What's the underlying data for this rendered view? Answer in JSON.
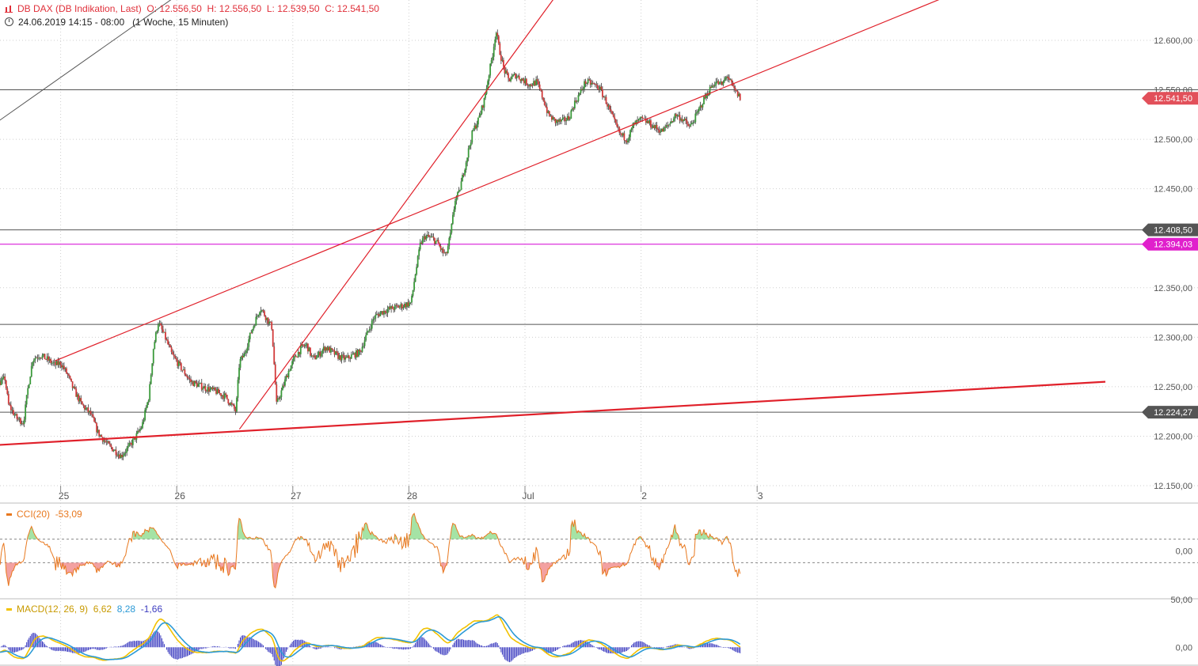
{
  "header": {
    "title": "DB DAX (DB Indikation, Last)",
    "ohlc": "O: 12.556,50  H: 12.556,50  L: 12.539,50  C: 12.541,50",
    "date_range": "24.06.2019 14:15 - 08:00",
    "timeframe": "(1 Woche, 15 Minuten)"
  },
  "chart_data": {
    "type": "candlestick",
    "x": {
      "ticks": [
        {
          "label": "25",
          "day": 1
        },
        {
          "label": "26",
          "day": 2
        },
        {
          "label": "27",
          "day": 3
        },
        {
          "label": "28",
          "day": 4
        },
        {
          "label": "Jul",
          "day": 5
        },
        {
          "label": "2",
          "day": 6
        },
        {
          "label": "3",
          "day": 7
        }
      ],
      "range_days": [
        0.0,
        10.0
      ]
    },
    "y": {
      "ticks": [
        {
          "label": "12.150,00",
          "v": 12150
        },
        {
          "label": "12.200,00",
          "v": 12200
        },
        {
          "label": "12.250,00",
          "v": 12250
        },
        {
          "label": "12.300,00",
          "v": 12300
        },
        {
          "label": "12.350,00",
          "v": 12350
        },
        {
          "label": "12.450,00",
          "v": 12450
        },
        {
          "label": "12.500,00",
          "v": 12500
        },
        {
          "label": "12.550,00",
          "v": 12550
        },
        {
          "label": "12.600,00",
          "v": 12600
        }
      ],
      "range": [
        12140,
        12650
      ]
    },
    "price_path": [
      [
        0.0,
        12288
      ],
      [
        0.1,
        12285
      ],
      [
        0.2,
        12272
      ],
      [
        0.3,
        12262
      ],
      [
        0.4,
        12258
      ],
      [
        0.45,
        12252
      ],
      [
        0.52,
        12258
      ],
      [
        0.55,
        12232
      ],
      [
        0.62,
        12218
      ],
      [
        0.68,
        12214
      ],
      [
        0.72,
        12250
      ],
      [
        0.76,
        12278
      ],
      [
        0.82,
        12282
      ],
      [
        0.88,
        12278
      ],
      [
        0.95,
        12272
      ],
      [
        1.0,
        12274
      ],
      [
        1.06,
        12262
      ],
      [
        1.1,
        12250
      ],
      [
        1.18,
        12232
      ],
      [
        1.26,
        12222
      ],
      [
        1.32,
        12204
      ],
      [
        1.4,
        12192
      ],
      [
        1.46,
        12186
      ],
      [
        1.52,
        12180
      ],
      [
        1.58,
        12188
      ],
      [
        1.64,
        12198
      ],
      [
        1.7,
        12210
      ],
      [
        1.76,
        12240
      ],
      [
        1.8,
        12290
      ],
      [
        1.84,
        12315
      ],
      [
        1.9,
        12300
      ],
      [
        1.96,
        12282
      ],
      [
        2.02,
        12272
      ],
      [
        2.08,
        12262
      ],
      [
        2.12,
        12255
      ],
      [
        2.18,
        12252
      ],
      [
        2.26,
        12248
      ],
      [
        2.34,
        12245
      ],
      [
        2.42,
        12240
      ],
      [
        2.48,
        12230
      ],
      [
        2.51,
        12225
      ],
      [
        2.54,
        12275
      ],
      [
        2.58,
        12282
      ],
      [
        2.64,
        12305
      ],
      [
        2.72,
        12330
      ],
      [
        2.78,
        12318
      ],
      [
        2.82,
        12310
      ],
      [
        2.86,
        12232
      ],
      [
        2.91,
        12248
      ],
      [
        2.96,
        12265
      ],
      [
        3.02,
        12280
      ],
      [
        3.08,
        12290
      ],
      [
        3.12,
        12292
      ],
      [
        3.17,
        12278
      ],
      [
        3.22,
        12282
      ],
      [
        3.28,
        12290
      ],
      [
        3.34,
        12285
      ],
      [
        3.4,
        12280
      ],
      [
        3.46,
        12278
      ],
      [
        3.52,
        12282
      ],
      [
        3.58,
        12285
      ],
      [
        3.62,
        12298
      ],
      [
        3.7,
        12320
      ],
      [
        3.76,
        12325
      ],
      [
        3.82,
        12328
      ],
      [
        3.88,
        12330
      ],
      [
        3.95,
        12332
      ],
      [
        4.02,
        12335
      ],
      [
        4.05,
        12360
      ],
      [
        4.1,
        12395
      ],
      [
        4.14,
        12402
      ],
      [
        4.2,
        12400
      ],
      [
        4.25,
        12395
      ],
      [
        4.28,
        12388
      ],
      [
        4.32,
        12382
      ],
      [
        4.36,
        12405
      ],
      [
        4.4,
        12440
      ],
      [
        4.43,
        12445
      ],
      [
        4.55,
        12508
      ],
      [
        4.6,
        12520
      ],
      [
        4.65,
        12540
      ],
      [
        4.68,
        12560
      ],
      [
        4.72,
        12585
      ],
      [
        4.75,
        12610
      ],
      [
        4.78,
        12590
      ],
      [
        4.82,
        12570
      ],
      [
        4.86,
        12560
      ],
      [
        4.92,
        12565
      ],
      [
        4.98,
        12560
      ],
      [
        5.04,
        12555
      ],
      [
        5.1,
        12558
      ],
      [
        5.16,
        12540
      ],
      [
        5.2,
        12525
      ],
      [
        5.26,
        12518
      ],
      [
        5.32,
        12518
      ],
      [
        5.38,
        12522
      ],
      [
        5.42,
        12535
      ],
      [
        5.48,
        12548
      ],
      [
        5.52,
        12558
      ],
      [
        5.58,
        12556
      ],
      [
        5.64,
        12552
      ],
      [
        5.7,
        12538
      ],
      [
        5.76,
        12520
      ],
      [
        5.82,
        12505
      ],
      [
        5.88,
        12500
      ],
      [
        5.94,
        12515
      ],
      [
        6.0,
        12520
      ],
      [
        6.06,
        12517
      ],
      [
        6.12,
        12512
      ],
      [
        6.18,
        12508
      ],
      [
        6.24,
        12515
      ],
      [
        6.3,
        12525
      ],
      [
        6.36,
        12520
      ],
      [
        6.42,
        12512
      ],
      [
        6.48,
        12525
      ],
      [
        6.54,
        12540
      ],
      [
        6.6,
        12552
      ],
      [
        6.64,
        12558
      ],
      [
        6.7,
        12555
      ],
      [
        6.74,
        12565
      ],
      [
        6.8,
        12550
      ],
      [
        6.86,
        12541
      ]
    ],
    "horizontal_lines": [
      {
        "value": 12550.0,
        "color": "#555555",
        "label": "",
        "bg": ""
      },
      {
        "value": 12408.5,
        "color": "#555555",
        "label": "12.408,50",
        "bg": "#555555"
      },
      {
        "value": 12394.03,
        "color": "#d400d4",
        "label": "12.394,03",
        "bg": "#e020cc"
      },
      {
        "value": 12313.0,
        "color": "#555555",
        "label": "",
        "bg": ""
      },
      {
        "value": 12224.27,
        "color": "#555555",
        "label": "12.224,27",
        "bg": "#555555"
      }
    ],
    "last_price": {
      "value": 12541.5,
      "label": "12.541,50",
      "bg": "#e2505a"
    },
    "trendlines": [
      {
        "from": [
          0.0,
          12188
        ],
        "to": [
          10.0,
          12255
        ],
        "color": "#e0202a",
        "width": 2.2
      },
      {
        "from": [
          2.54,
          12207
        ],
        "to": [
          5.36,
          12660
        ],
        "color": "#e0202a",
        "width": 1.2
      },
      {
        "from": [
          0.95,
          12276
        ],
        "to": [
          8.96,
          12660
        ],
        "color": "#e0202a",
        "width": 1.2
      },
      {
        "from": [
          0.0,
          12480
        ],
        "to": [
          2.18,
          12660
        ],
        "color": "#555555",
        "width": 1.0
      }
    ],
    "cci": {
      "label": "CCI(20)",
      "value": "-53,09",
      "ticks": [
        {
          "label": "0,00",
          "v": 0
        }
      ],
      "upper": 100,
      "lower": -100,
      "range": [
        -400,
        400
      ]
    },
    "macd": {
      "label": "MACD(12, 26, 9)",
      "values": [
        "6,62",
        "8,28",
        "-1,66"
      ],
      "ticks": [
        {
          "label": "50,00",
          "v": 50
        },
        {
          "label": "0,00",
          "v": 0
        }
      ],
      "range": [
        -18,
        50
      ]
    }
  },
  "colors": {
    "bull": "#3a9a3a",
    "bear": "#d23a3a",
    "wick": "#3a3a3a",
    "grid": "#cfcfcf",
    "cci_line": "#e8781e",
    "cci_pos_fill": "#8edc8e",
    "cci_neg_fill": "#f08a8a",
    "macd_line": "#f2c200",
    "signal_line": "#2c9ad6",
    "hist": "#3c3cc0"
  }
}
